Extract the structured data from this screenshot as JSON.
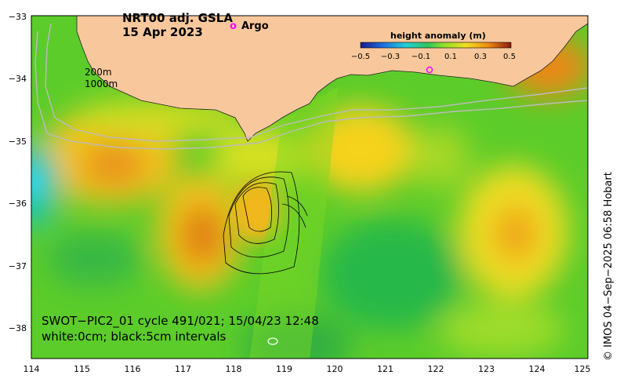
{
  "title": {
    "line1": "NRT00 adj. GSLA",
    "line2": "15 Apr 2023"
  },
  "argo_legend": {
    "marker": "o",
    "label": "Argo"
  },
  "isobaths": {
    "line1": "200m",
    "line2": "1000m"
  },
  "colorbar": {
    "title": "height anomaly (m)",
    "ticks": [
      "−0.5",
      "−0.3",
      "−0.1",
      "0.1",
      "0.3",
      "0.5"
    ]
  },
  "swot": {
    "line1": "SWOT−PIC2_01 cycle 491/021; 15/04/23 12:48",
    "line2": "white:0cm; black:5cm intervals"
  },
  "credit": "© IMOS 04−Sep−2025 06:58 Hobart",
  "axes": {
    "x_ticks": [
      "114",
      "115",
      "116",
      "117",
      "118",
      "119",
      "120",
      "121",
      "122",
      "123",
      "124",
      "125"
    ],
    "y_ticks": [
      "−33",
      "−34",
      "−35",
      "−36",
      "−37",
      "−38"
    ]
  },
  "colors": {
    "land": "#f8c89c",
    "ocean_base": "#5ccc2a",
    "argo": "#ff00ff"
  }
}
